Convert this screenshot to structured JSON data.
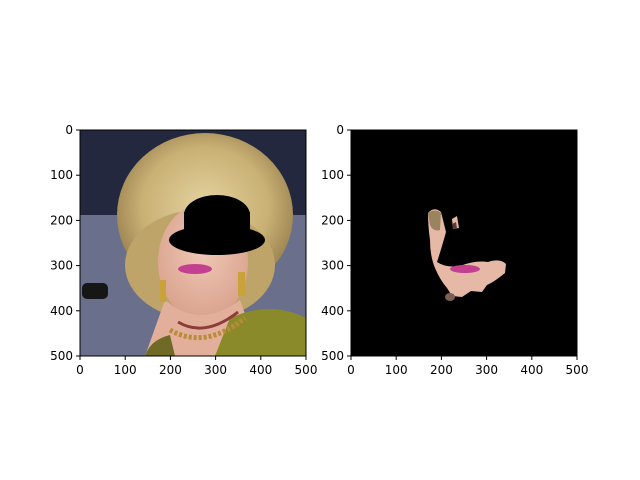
{
  "chart_data": [
    {
      "type": "image",
      "panel": "left",
      "content": "photo of woman with blonde curly hair; upper face obscured by black occluder",
      "xlim": [
        0,
        500
      ],
      "ylim": [
        500,
        0
      ],
      "xticks": [
        0,
        100,
        200,
        300,
        400,
        500
      ],
      "yticks": [
        0,
        100,
        200,
        300,
        400,
        500
      ],
      "title": "",
      "xlabel": "",
      "ylabel": ""
    },
    {
      "type": "image",
      "panel": "right",
      "content": "segmentation mask on black background showing visible skin region (cheek, lips, chin)",
      "xlim": [
        0,
        500
      ],
      "ylim": [
        500,
        0
      ],
      "xticks": [
        0,
        100,
        200,
        300,
        400,
        500
      ],
      "yticks": [
        0,
        100,
        200,
        300,
        400,
        500
      ],
      "title": "",
      "xlabel": "",
      "ylabel": ""
    }
  ],
  "colors": {
    "background": "#ffffff",
    "axis": "#000000",
    "mask_bg": "#000000",
    "occluder": "#000000",
    "hair": "#cdb67a",
    "skin": "#e6b8a6",
    "lips": "#c2408f",
    "dress": "#8a8a2a"
  }
}
